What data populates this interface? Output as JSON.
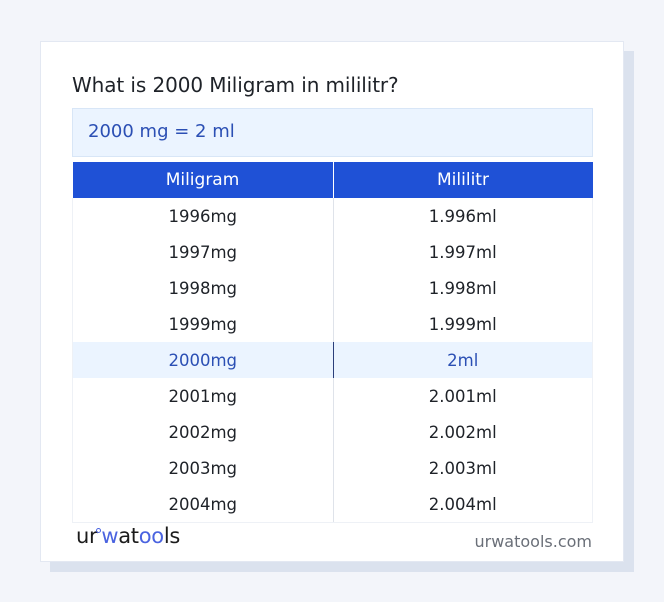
{
  "card": {
    "title": "What is 2000 Miligram in mililitr?",
    "result": "2000 mg = 2 ml"
  },
  "table": {
    "headers": [
      "Miligram",
      "Mililitr"
    ],
    "rows": [
      {
        "mg": "1996mg",
        "ml": "1.996ml"
      },
      {
        "mg": "1997mg",
        "ml": "1.997ml"
      },
      {
        "mg": "1998mg",
        "ml": "1.998ml"
      },
      {
        "mg": "1999mg",
        "ml": "1.999ml"
      },
      {
        "mg": "2000mg",
        "ml": "2ml",
        "highlighted": true
      },
      {
        "mg": "2001mg",
        "ml": "2.001ml"
      },
      {
        "mg": "2002mg",
        "ml": "2.002ml"
      },
      {
        "mg": "2003mg",
        "ml": "2.003ml"
      },
      {
        "mg": "2004mg",
        "ml": "2.004ml"
      }
    ]
  },
  "footer": {
    "logo": {
      "part1": "ur",
      "part2": "w",
      "part3": "at",
      "part4": "oo",
      "part5": "ls"
    },
    "site": "urwatools.com"
  },
  "colors": {
    "accent": "#1f51d6",
    "highlight_bg": "#ebf4ff",
    "highlight_text": "#2b4fb4",
    "logo_blue": "#4a63e0"
  }
}
